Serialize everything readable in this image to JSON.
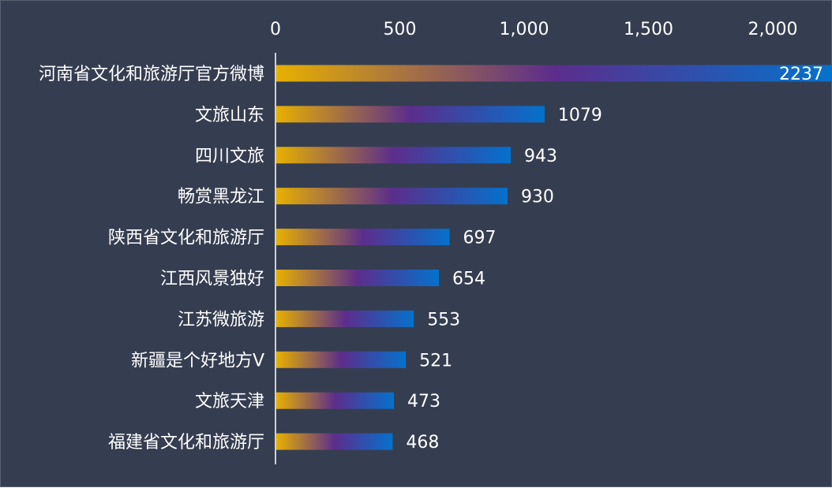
{
  "chart_data": {
    "type": "bar",
    "orientation": "horizontal",
    "categories": [
      "河南省文化和旅游厅官方微博",
      "文旅山东",
      "四川文旅",
      "畅赏黑龙江",
      "陕西省文化和旅游厅",
      "江西风景独好",
      "江苏微旅游",
      "新疆是个好地方V",
      "文旅天津",
      "福建省文化和旅游厅"
    ],
    "values": [
      2237,
      1079,
      943,
      930,
      697,
      654,
      553,
      521,
      473,
      468
    ],
    "value_labels": [
      "2237",
      "1079",
      "943",
      "930",
      "697",
      "654",
      "553",
      "521",
      "473",
      "468"
    ],
    "x_ticks": [
      0,
      500,
      1000,
      1500,
      2000
    ],
    "x_tick_labels": [
      "0",
      "500",
      "1,000",
      "1,500",
      "2,000"
    ],
    "xlim": [
      0,
      2150
    ],
    "x_axis_position": "top",
    "grid": false,
    "legend": "none",
    "colors": {
      "background": "#353e50",
      "gradient_start": "#e8b000",
      "gradient_mid": "#5c2d8c",
      "gradient_end": "#0472cc",
      "text": "#ffffff",
      "axis": "#ffffff"
    }
  }
}
